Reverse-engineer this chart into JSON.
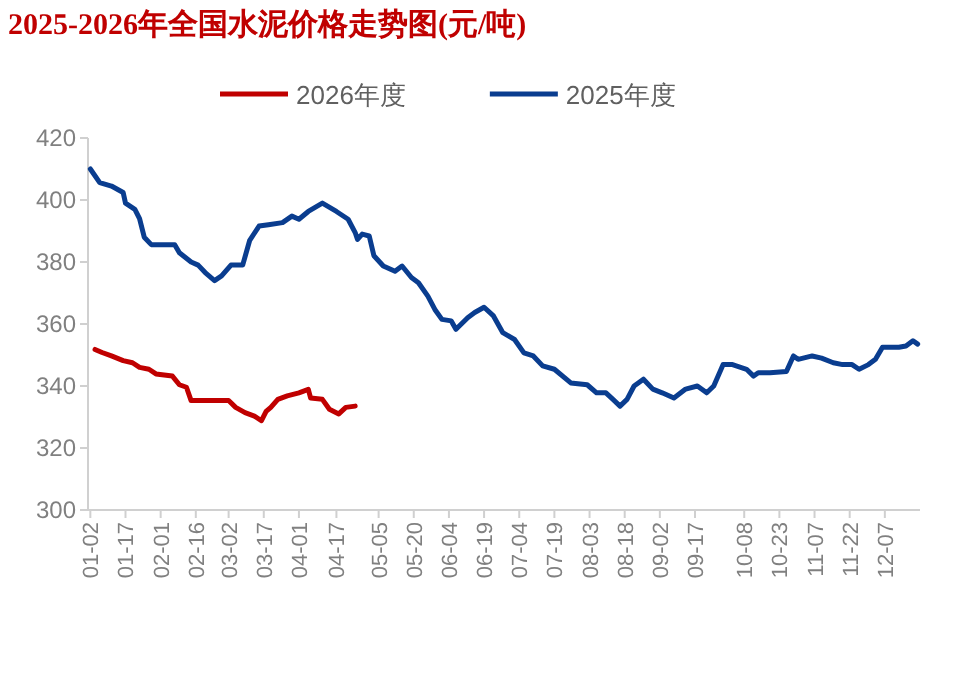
{
  "chart_data": {
    "type": "line",
    "title": "2025-2026年全国水泥价格走势图(元/吨)",
    "legend": "top",
    "grid": false,
    "xlim": [
      "--01-01",
      "--12-22"
    ],
    "ylim": [
      300,
      420
    ],
    "yticks": [
      300,
      320,
      340,
      360,
      380,
      400,
      420
    ],
    "xticks": [
      {
        "value": "--01-02",
        "label": "01-02"
      },
      {
        "value": "--01-17",
        "label": "01-17"
      },
      {
        "value": "--02-01",
        "label": "02-01"
      },
      {
        "value": "--02-16",
        "label": "02-16"
      },
      {
        "value": "--03-02",
        "label": "03-02"
      },
      {
        "value": "--03-17",
        "label": "03-17"
      },
      {
        "value": "--04-01",
        "label": "04-01"
      },
      {
        "value": "--04-17",
        "label": "04-17"
      },
      {
        "value": "--05-05",
        "label": "05-05"
      },
      {
        "value": "--05-20",
        "label": "05-20"
      },
      {
        "value": "--06-04",
        "label": "06-04"
      },
      {
        "value": "--06-19",
        "label": "06-19"
      },
      {
        "value": "--07-04",
        "label": "07-04"
      },
      {
        "value": "--07-19",
        "label": "07-19"
      },
      {
        "value": "--08-03",
        "label": "08-03"
      },
      {
        "value": "--08-18",
        "label": "08-18"
      },
      {
        "value": "--09-02",
        "label": "09-02"
      },
      {
        "value": "--09-17",
        "label": "09-17"
      },
      {
        "value": "--10-08",
        "label": "10-08"
      },
      {
        "value": "--10-23",
        "label": "10-23"
      },
      {
        "value": "--11-07",
        "label": "11-07"
      },
      {
        "value": "--11-22",
        "label": "11-22"
      },
      {
        "value": "--12-07",
        "label": "12-07"
      }
    ],
    "series": [
      {
        "name": "2026年度",
        "color": "#c00000",
        "x": [
          "--01-04",
          "--01-07",
          "--01-11",
          "--01-16",
          "--01-20",
          "--01-23",
          "--01-27",
          "--01-30",
          "--02-06",
          "--02-09",
          "--02-12",
          "--02-14",
          "--03-02",
          "--03-05",
          "--03-09",
          "--03-13",
          "--03-16",
          "--03-18",
          "--03-20",
          "--03-23",
          "--03-27",
          "--04-01",
          "--04-05",
          "--04-06",
          "--04-11",
          "--04-14",
          "--04-18",
          "--04-21",
          "--04-25"
        ],
        "values": [
          351.8,
          350.8,
          349.7,
          348.2,
          347.5,
          346,
          345.4,
          343.9,
          343.2,
          340.4,
          339.6,
          335.3,
          335.3,
          333.1,
          331.4,
          330.3,
          328.8,
          331.8,
          333.1,
          335.7,
          336.8,
          337.8,
          338.9,
          336.1,
          335.7,
          332.5,
          331,
          333.1,
          333.5
        ]
      },
      {
        "name": "2025年度",
        "color": "#0a3d8f",
        "x": [
          "--01-02",
          "--01-06",
          "--01-11",
          "--01-16",
          "--01-17",
          "--01-21",
          "--01-23",
          "--01-25",
          "--01-28",
          "--02-07",
          "--02-09",
          "--02-14",
          "--02-17",
          "--02-20",
          "--02-24",
          "--02-27",
          "--03-03",
          "--03-08",
          "--03-11",
          "--03-15",
          "--03-19",
          "--03-25",
          "--03-29",
          "--04-01",
          "--04-05",
          "--04-11",
          "--04-17",
          "--04-22",
          "--04-25",
          "--04-26",
          "--04-28",
          "--05-01",
          "--05-03",
          "--05-07",
          "--05-12",
          "--05-15",
          "--05-19",
          "--05-22",
          "--05-26",
          "--05-29",
          "--06-01",
          "--06-05",
          "--06-07",
          "--06-12",
          "--06-15",
          "--06-19",
          "--06-23",
          "--06-27",
          "--07-02",
          "--07-06",
          "--07-10",
          "--07-14",
          "--07-19",
          "--07-26",
          "--08-02",
          "--08-06",
          "--08-10",
          "--08-13",
          "--08-16",
          "--08-19",
          "--08-22",
          "--08-26",
          "--08-30",
          "--09-03",
          "--09-08",
          "--09-13",
          "--09-18",
          "--09-22",
          "--09-25",
          "--09-29",
          "--10-03",
          "--10-09",
          "--10-12",
          "--10-14",
          "--10-19",
          "--10-26",
          "--10-29",
          "--10-31",
          "--11-06",
          "--11-10",
          "--11-15",
          "--11-19",
          "--11-23",
          "--11-26",
          "--11-30",
          "--12-03",
          "--12-06",
          "--12-13",
          "--12-16",
          "--12-19",
          "--12-21"
        ],
        "values": [
          410,
          405.6,
          404.5,
          402.4,
          399,
          397,
          394,
          388,
          385.6,
          385.6,
          383,
          380,
          379,
          376.6,
          374,
          375.5,
          379,
          379,
          387,
          391.6,
          392,
          392.7,
          394.8,
          393.8,
          396.3,
          399,
          396.3,
          393.8,
          389.5,
          387.3,
          389,
          388.4,
          382,
          378.7,
          377,
          378.7,
          375,
          373.3,
          369,
          364.7,
          361.5,
          361,
          358.3,
          362,
          363.7,
          365.4,
          362.6,
          357.2,
          355,
          350.7,
          349.7,
          346.5,
          345.4,
          341,
          340.4,
          337.8,
          337.8,
          335.7,
          333.5,
          335.7,
          340,
          342.2,
          339,
          337.8,
          336.1,
          339,
          340,
          337.8,
          340,
          346.9,
          346.9,
          345.4,
          343.2,
          344.3,
          344.3,
          344.7,
          349.7,
          348.6,
          349.7,
          349,
          347.5,
          346.9,
          346.9,
          345.4,
          346.9,
          348.6,
          352.5,
          352.5,
          352.9,
          354.6,
          353.5
        ]
      }
    ]
  }
}
